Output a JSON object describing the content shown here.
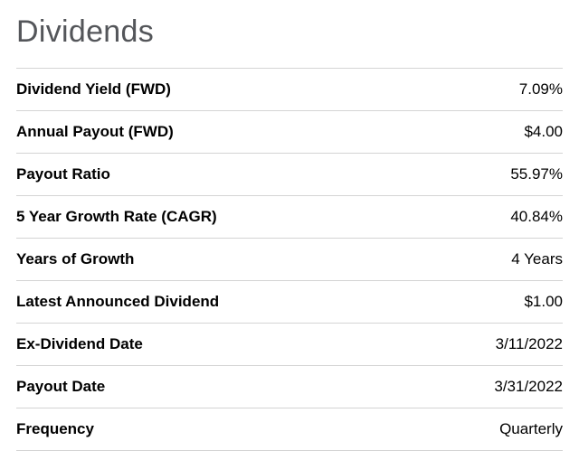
{
  "title": "Dividends",
  "rows": [
    {
      "label": "Dividend Yield (FWD)",
      "value": "7.09%"
    },
    {
      "label": "Annual Payout (FWD)",
      "value": "$4.00"
    },
    {
      "label": "Payout Ratio",
      "value": "55.97%"
    },
    {
      "label": "5 Year Growth Rate (CAGR)",
      "value": "40.84%"
    },
    {
      "label": "Years of Growth",
      "value": "4 Years"
    },
    {
      "label": "Latest Announced Dividend",
      "value": "$1.00"
    },
    {
      "label": "Ex-Dividend Date",
      "value": "3/11/2022"
    },
    {
      "label": "Payout Date",
      "value": "3/31/2022"
    },
    {
      "label": "Frequency",
      "value": "Quarterly"
    }
  ],
  "colors": {
    "title": "#54565a",
    "text": "#000000",
    "divider": "#d4d4d4",
    "background": "#ffffff"
  },
  "typography": {
    "title_fontsize": 34,
    "title_fontweight": 400,
    "label_fontsize": 17,
    "label_fontweight": 700,
    "value_fontsize": 17,
    "value_fontweight": 400
  }
}
